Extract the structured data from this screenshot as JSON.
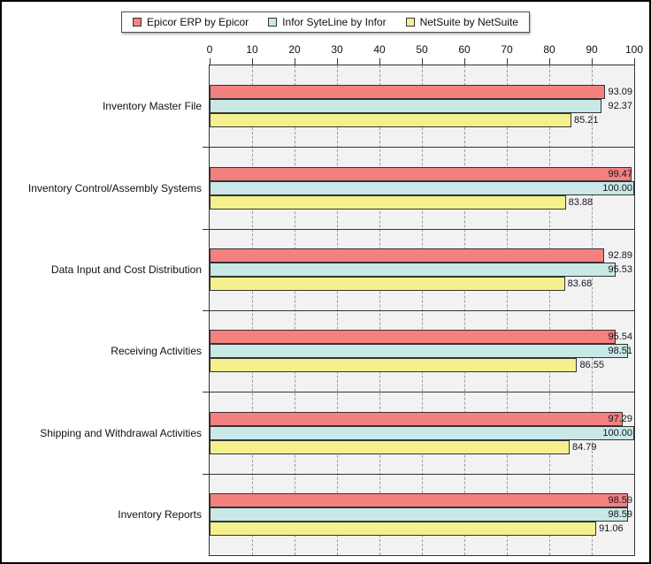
{
  "colors": {
    "plot_background": "#F2F2F2",
    "grid": "#999999",
    "border": "#333333",
    "text": "#111111"
  },
  "chart_data": {
    "type": "bar",
    "orientation": "horizontal",
    "title": "",
    "xlabel": "",
    "ylabel": "",
    "xlim": [
      0,
      100
    ],
    "x_ticks": [
      0,
      10,
      20,
      30,
      40,
      50,
      60,
      70,
      80,
      90,
      100
    ],
    "axis_position": "top",
    "grid": "dashed-vertical",
    "legend_position": "top-center",
    "value_label_decimals": 2,
    "categories": [
      "Inventory Master File",
      "Inventory Control/Assembly Systems",
      "Data Input and Cost Distribution",
      "Receiving Activities",
      "Shipping and Withdrawal Activities",
      "Inventory Reports"
    ],
    "series": [
      {
        "name": "Epicor ERP by Epicor",
        "color": "#F48080",
        "values": [
          93.09,
          99.47,
          92.89,
          95.54,
          97.29,
          98.59
        ]
      },
      {
        "name": "Infor SyteLine by Infor",
        "color": "#C9E8E6",
        "values": [
          92.37,
          100.0,
          95.53,
          98.51,
          100.0,
          98.59
        ]
      },
      {
        "name": "NetSuite by NetSuite",
        "color": "#F5F08E",
        "values": [
          85.21,
          83.88,
          83.68,
          86.55,
          84.79,
          91.06
        ]
      }
    ]
  }
}
